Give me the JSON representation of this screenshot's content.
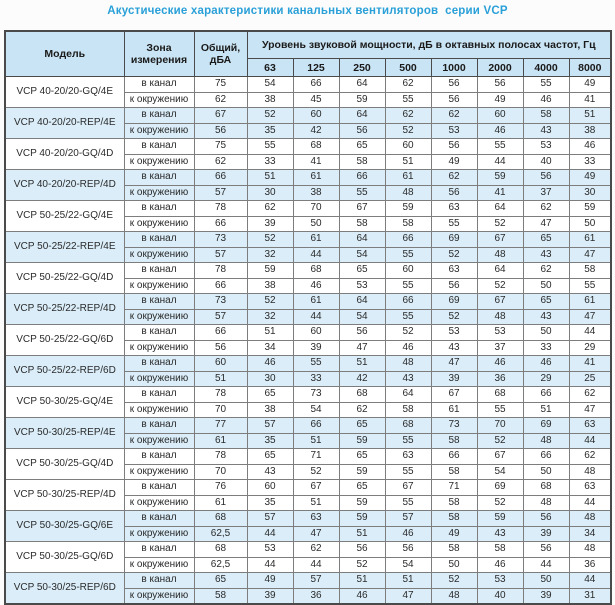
{
  "title": "Акустические характеристики канальных вентиляторов  серии VCP",
  "colors": {
    "title": "#2aa0d8",
    "header_bg": "#c9e4f4",
    "stripe_bg": "#daedf8",
    "border_dark": "#4a4a4a",
    "text": "#2b2b2b"
  },
  "table": {
    "headers": {
      "model": "Модель",
      "zone": "Зона измерения",
      "total": "Общий, дБА",
      "spl_group": "Уровень звуковой мощности, дБ в октавных полосах частот, Гц",
      "frequencies": [
        "63",
        "125",
        "250",
        "500",
        "1000",
        "2000",
        "4000",
        "8000"
      ]
    },
    "zone_labels": {
      "duct": "в канал",
      "ambient": "к окружению"
    },
    "models": [
      {
        "name": "VCP 40-20/20-GQ/4E",
        "striped": false,
        "rows": [
          {
            "zone": "в канал",
            "total": "75",
            "values": [
              54,
              66,
              64,
              62,
              56,
              56,
              55,
              49
            ]
          },
          {
            "zone": "к окружению",
            "total": "62",
            "values": [
              38,
              45,
              59,
              55,
              56,
              49,
              46,
              41
            ]
          }
        ]
      },
      {
        "name": "VCP 40-20/20-REP/4E",
        "striped": true,
        "rows": [
          {
            "zone": "в канал",
            "total": "67",
            "values": [
              52,
              60,
              64,
              62,
              62,
              60,
              58,
              51
            ]
          },
          {
            "zone": "к окружению",
            "total": "56",
            "values": [
              35,
              42,
              56,
              52,
              53,
              46,
              43,
              38
            ]
          }
        ]
      },
      {
        "name": "VCP 40-20/20-GQ/4D",
        "striped": false,
        "rows": [
          {
            "zone": "в канал",
            "total": "75",
            "values": [
              55,
              68,
              65,
              60,
              56,
              55,
              53,
              46
            ]
          },
          {
            "zone": "к окружению",
            "total": "62",
            "values": [
              33,
              41,
              58,
              51,
              49,
              44,
              40,
              33
            ]
          }
        ]
      },
      {
        "name": "VCP 40-20/20-REP/4D",
        "striped": true,
        "rows": [
          {
            "zone": "в канал",
            "total": "66",
            "values": [
              51,
              61,
              66,
              61,
              62,
              59,
              56,
              49
            ]
          },
          {
            "zone": "к окружению",
            "total": "57",
            "values": [
              30,
              38,
              55,
              48,
              56,
              41,
              37,
              30
            ]
          }
        ]
      },
      {
        "name": "VCP 50-25/22-GQ/4E",
        "striped": false,
        "rows": [
          {
            "zone": "в канал",
            "total": "78",
            "values": [
              62,
              70,
              67,
              59,
              63,
              64,
              62,
              59
            ]
          },
          {
            "zone": "к окружению",
            "total": "66",
            "values": [
              39,
              50,
              58,
              58,
              55,
              52,
              47,
              50
            ]
          }
        ]
      },
      {
        "name": "VCP 50-25/22-REP/4E",
        "striped": true,
        "rows": [
          {
            "zone": "в канал",
            "total": "73",
            "values": [
              52,
              61,
              64,
              66,
              69,
              67,
              65,
              61
            ]
          },
          {
            "zone": "к окружению",
            "total": "57",
            "values": [
              32,
              44,
              54,
              55,
              52,
              48,
              43,
              47
            ]
          }
        ]
      },
      {
        "name": "VCP 50-25/22-GQ/4D",
        "striped": false,
        "rows": [
          {
            "zone": "в канал",
            "total": "78",
            "values": [
              59,
              68,
              65,
              60,
              63,
              64,
              62,
              58
            ]
          },
          {
            "zone": "к окружению",
            "total": "66",
            "values": [
              38,
              46,
              53,
              55,
              56,
              52,
              50,
              55
            ]
          }
        ]
      },
      {
        "name": "VCP 50-25/22-REP/4D",
        "striped": true,
        "rows": [
          {
            "zone": "в канал",
            "total": "73",
            "values": [
              52,
              61,
              64,
              66,
              69,
              67,
              65,
              61
            ]
          },
          {
            "zone": "к окружению",
            "total": "57",
            "values": [
              32,
              44,
              54,
              55,
              52,
              48,
              43,
              47
            ]
          }
        ]
      },
      {
        "name": "VCP 50-25/22-GQ/6D",
        "striped": false,
        "rows": [
          {
            "zone": "в канал",
            "total": "66",
            "values": [
              51,
              60,
              56,
              52,
              53,
              53,
              50,
              44
            ]
          },
          {
            "zone": "к окружению",
            "total": "56",
            "values": [
              34,
              39,
              47,
              46,
              43,
              37,
              33,
              29
            ]
          }
        ]
      },
      {
        "name": "VCP 50-25/22-REP/6D",
        "striped": true,
        "rows": [
          {
            "zone": "в канал",
            "total": "60",
            "values": [
              46,
              55,
              51,
              48,
              47,
              46,
              46,
              41
            ]
          },
          {
            "zone": "к окружению",
            "total": "51",
            "values": [
              30,
              33,
              42,
              43,
              39,
              36,
              29,
              25
            ]
          }
        ]
      },
      {
        "name": "VCP 50-30/25-GQ/4E",
        "striped": false,
        "rows": [
          {
            "zone": "в канал",
            "total": "78",
            "values": [
              65,
              73,
              68,
              64,
              67,
              68,
              66,
              62
            ]
          },
          {
            "zone": "к окружению",
            "total": "70",
            "values": [
              38,
              54,
              62,
              58,
              61,
              55,
              51,
              47
            ]
          }
        ]
      },
      {
        "name": "VCP 50-30/25-REP/4E",
        "striped": true,
        "rows": [
          {
            "zone": "в канал",
            "total": "77",
            "values": [
              57,
              66,
              65,
              68,
              73,
              70,
              69,
              63
            ]
          },
          {
            "zone": "к окружению",
            "total": "61",
            "values": [
              35,
              51,
              59,
              55,
              58,
              52,
              48,
              44
            ]
          }
        ]
      },
      {
        "name": "VCP 50-30/25-GQ/4D",
        "striped": false,
        "rows": [
          {
            "zone": "в канал",
            "total": "78",
            "values": [
              65,
              71,
              65,
              63,
              66,
              67,
              66,
              62
            ]
          },
          {
            "zone": "к окружению",
            "total": "70",
            "values": [
              43,
              52,
              59,
              55,
              58,
              54,
              50,
              48
            ]
          }
        ]
      },
      {
        "name": "VCP 50-30/25-REP/4D",
        "striped": false,
        "rows": [
          {
            "zone": "в канал",
            "total": "76",
            "values": [
              60,
              67,
              65,
              67,
              71,
              69,
              68,
              63
            ]
          },
          {
            "zone": "к окружению",
            "total": "61",
            "values": [
              35,
              51,
              59,
              55,
              58,
              52,
              48,
              44
            ]
          }
        ]
      },
      {
        "name": "VCP 50-30/25-GQ/6E",
        "striped": true,
        "rows": [
          {
            "zone": "в канал",
            "total": "68",
            "values": [
              57,
              63,
              59,
              57,
              58,
              59,
              56,
              48
            ]
          },
          {
            "zone": "к окружению",
            "total": "62,5",
            "values": [
              44,
              47,
              51,
              46,
              49,
              43,
              39,
              34
            ]
          }
        ]
      },
      {
        "name": "VCP 50-30/25-GQ/6D",
        "striped": false,
        "rows": [
          {
            "zone": "в канал",
            "total": "68",
            "values": [
              53,
              62,
              56,
              56,
              58,
              58,
              56,
              48
            ]
          },
          {
            "zone": "к окружению",
            "total": "62,5",
            "values": [
              44,
              44,
              52,
              54,
              50,
              46,
              44,
              36
            ]
          }
        ]
      },
      {
        "name": "VCP 50-30/25-REP/6D",
        "striped": true,
        "rows": [
          {
            "zone": "в канал",
            "total": "65",
            "values": [
              49,
              57,
              51,
              51,
              52,
              53,
              50,
              44
            ]
          },
          {
            "zone": "к окружению",
            "total": "58",
            "values": [
              39,
              36,
              46,
              47,
              48,
              40,
              39,
              31
            ]
          }
        ]
      }
    ]
  }
}
